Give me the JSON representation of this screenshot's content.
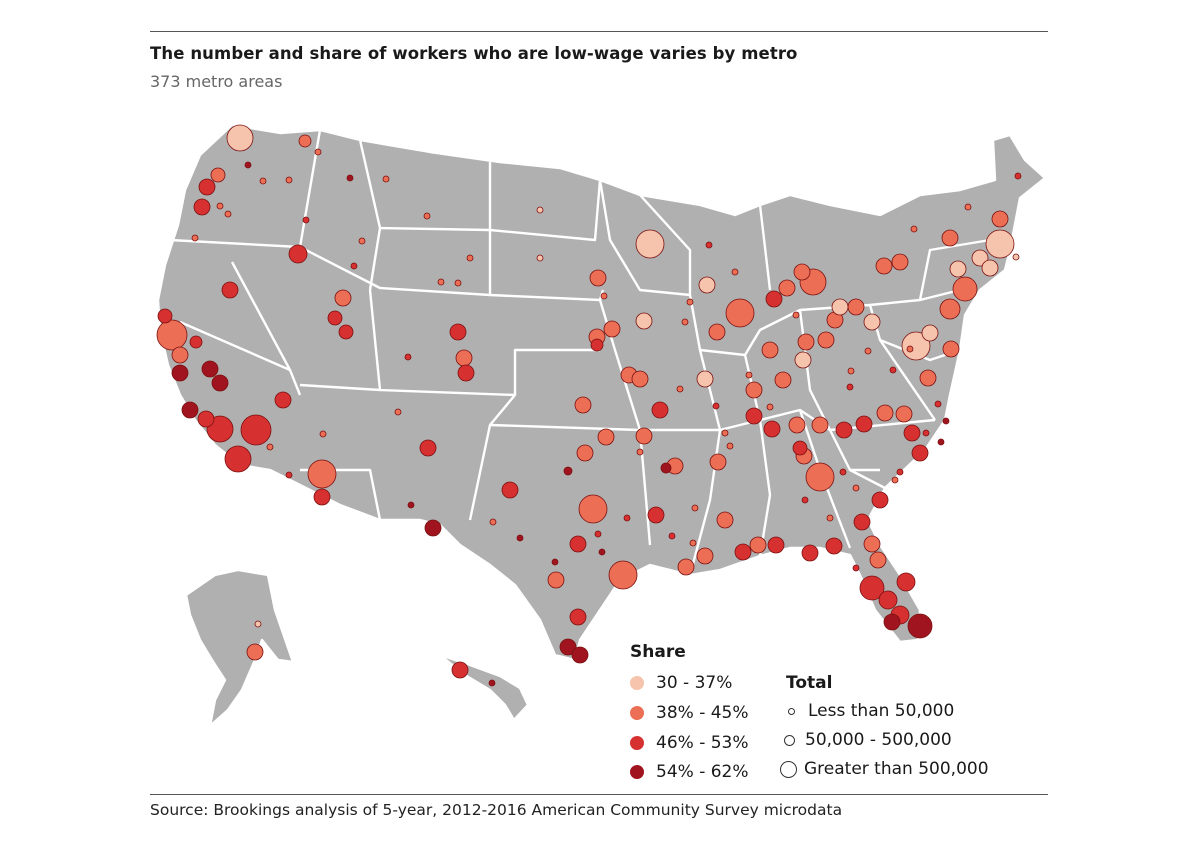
{
  "title": "The number and share of workers who are low-wage varies by metro",
  "subtitle": "373 metro areas",
  "source": "Source: Brookings analysis of 5-year, 2012-2016 American Community Survey microdata",
  "colors": {
    "land": "#b0b0b0",
    "share_30_37": "#f6c3ac",
    "share_38_45": "#ec6f55",
    "share_46_53": "#d73030",
    "share_54_62": "#a01420"
  },
  "legend": {
    "share_title": "Share",
    "share_items": [
      {
        "label": "30 - 37%",
        "color": "#f6c3ac"
      },
      {
        "label": "38% - 45%",
        "color": "#ec6f55"
      },
      {
        "label": "46% - 53%",
        "color": "#d73030"
      },
      {
        "label": "54% - 62%",
        "color": "#a01420"
      }
    ],
    "total_title": "Total",
    "total_items": [
      {
        "label": "Less than 50,000"
      },
      {
        "label": "50,000 - 500,000"
      },
      {
        "label": "Greater than 500,000"
      }
    ]
  },
  "map_data": {
    "type": "bubble-map",
    "metro_count": 373,
    "size_classes": [
      "Less than 50,000",
      "50,000 - 500,000",
      "Greater than 500,000"
    ],
    "share_classes": [
      "30 - 37%",
      "38% - 45%",
      "46% - 53%",
      "54% - 62%"
    ]
  }
}
